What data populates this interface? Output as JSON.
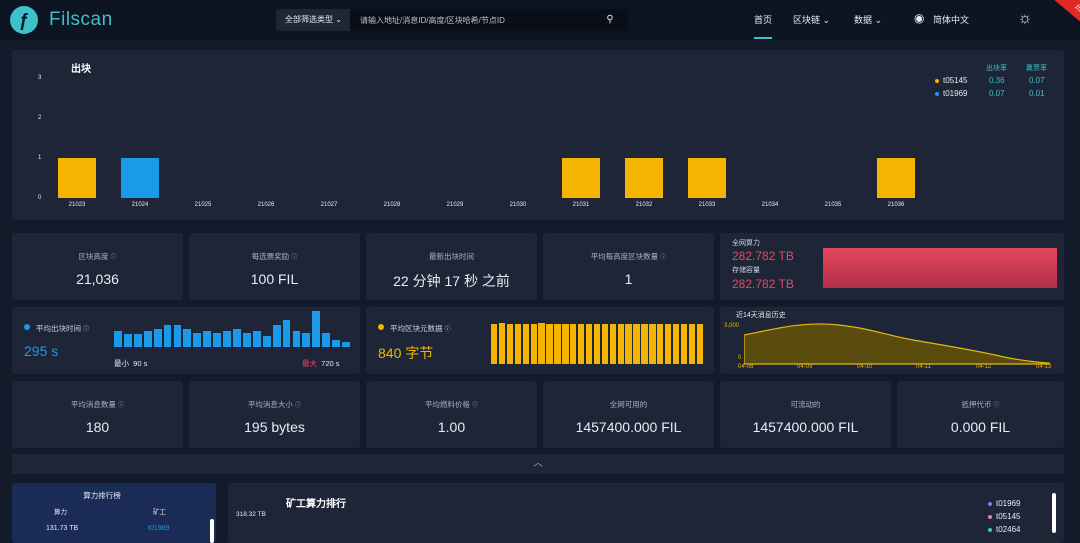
{
  "header": {
    "logo_glyph": "ƒ",
    "app_name": "Filscan",
    "search_filter": "全部筛选类型",
    "search_placeholder": "请输入地址/消息ID/高度/区块哈希/节点ID",
    "nav": [
      {
        "label": "首页",
        "active": true
      },
      {
        "label": "区块链 ⌄",
        "active": false
      },
      {
        "label": "数据 ⌄",
        "active": false
      },
      {
        "label": "简体中文",
        "active": false
      }
    ],
    "ribbon": "Interop Net",
    "icons": {
      "search": "search-icon",
      "chevron": "chevron-down-icon",
      "globe": "globe-icon",
      "theme": "sun-icon"
    }
  },
  "blocks": {
    "title": "出块",
    "legend_headers": [
      "出块率",
      "赢票率"
    ],
    "legend": [
      {
        "name": "t05145",
        "color": "#f5b400",
        "rate": "0.36",
        "win": "0.07"
      },
      {
        "name": "t01969",
        "color": "#1a9ae8",
        "rate": "0.07",
        "win": "0.01"
      }
    ]
  },
  "chart_data": {
    "type": "bar",
    "title": "出块",
    "categories": [
      "21023",
      "21024",
      "21025",
      "21026",
      "21027",
      "21028",
      "21029",
      "21030",
      "21031",
      "21032",
      "21033",
      "21034",
      "21035",
      "21036"
    ],
    "series": [
      {
        "name": "t05145",
        "color": "#f5b400",
        "values": [
          1,
          0,
          0,
          0,
          0,
          0,
          0,
          0,
          1,
          1,
          1,
          0,
          0,
          1
        ]
      },
      {
        "name": "t01969",
        "color": "#1a9ae8",
        "values": [
          0,
          1,
          0,
          0,
          0,
          0,
          0,
          0,
          0,
          0,
          0,
          0,
          0,
          0
        ]
      }
    ],
    "yticks": [
      "0",
      "1",
      "2",
      "3"
    ],
    "ylim": [
      0,
      3
    ]
  },
  "cards_row1": [
    {
      "label": "区块高度",
      "value": "21,036"
    },
    {
      "label": "每选票奖励",
      "value": "100 FIL"
    },
    {
      "label": "最新出块时间",
      "value": "22 分钟 17 秒 之前"
    },
    {
      "label": "平均每高度区块数量",
      "value": "1"
    }
  ],
  "capacity": {
    "power_label": "全网算力",
    "power_value": "282.782 TB",
    "storage_label": "存储容量",
    "storage_value": "282.782 TB"
  },
  "avg_block_time": {
    "title": "平均出块时间",
    "value": "295 s",
    "min_label": "最小",
    "min_value": "90 s",
    "max_label": "最大",
    "max_value": "720 s",
    "color": "#1a9ae8",
    "bars": [
      0.45,
      0.35,
      0.35,
      0.45,
      0.5,
      0.6,
      0.6,
      0.5,
      0.4,
      0.45,
      0.4,
      0.45,
      0.5,
      0.4,
      0.45,
      0.3,
      0.6,
      0.75,
      0.45,
      0.4,
      1.0,
      0.4,
      0.2,
      0.15
    ]
  },
  "avg_block_size": {
    "title": "平均区块元数据",
    "value": "840 字节",
    "color": "#f5b400",
    "bars": [
      0.95,
      0.97,
      0.96,
      0.95,
      0.95,
      0.96,
      0.97,
      0.96,
      0.95,
      0.95,
      0.96,
      0.96,
      0.95,
      0.96,
      0.95,
      0.95,
      0.96,
      0.96,
      0.95,
      0.95,
      0.96,
      0.96,
      0.96,
      0.95,
      0.96,
      0.95,
      0.95
    ]
  },
  "message_history": {
    "title": "近14天消息历史",
    "y_ticks": [
      "3,000",
      "0"
    ],
    "x_ticks": [
      "04-08",
      "04-09",
      "04-10",
      "04-11",
      "04-12",
      "04-13"
    ]
  },
  "cards_row3": [
    {
      "label": "平均消息数量",
      "value": "180"
    },
    {
      "label": "平均消息大小",
      "value": "195 bytes"
    },
    {
      "label": "平均燃料价格",
      "value": "1.00"
    },
    {
      "label": "全网可用的",
      "value": "1457400.000 FIL"
    },
    {
      "label": "可流动的",
      "value": "1457400.000 FIL"
    },
    {
      "label": "抵押代币",
      "value": "0.000 FIL"
    }
  ],
  "ranking": {
    "title": "算力排行榜",
    "headers": [
      "算力",
      "矿工"
    ],
    "rows": [
      {
        "power": "131.73 TB",
        "miner": "t01969"
      }
    ]
  },
  "miner_power": {
    "title": "矿工算力排行",
    "y_top": "318.32 TB",
    "legend": [
      {
        "name": "t01969",
        "color": "#9b6cf0"
      },
      {
        "name": "t05145",
        "color": "#f07ab4"
      },
      {
        "name": "t02464",
        "color": "#3fc1c9"
      }
    ]
  }
}
